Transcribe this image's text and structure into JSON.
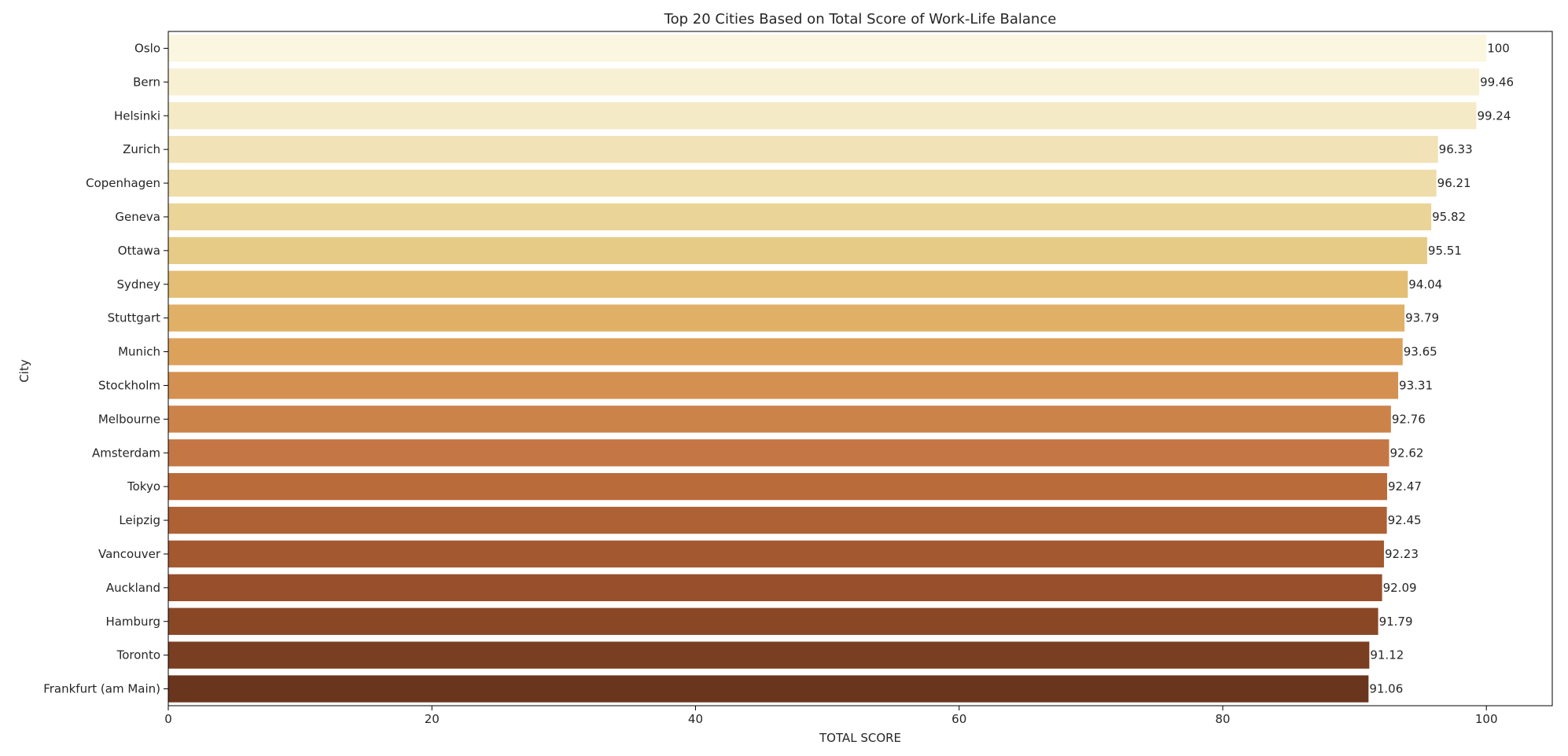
{
  "chart_data": {
    "type": "bar",
    "orientation": "horizontal",
    "title": "Top 20 Cities Based on Total Score of Work-Life Balance",
    "xlabel": "TOTAL SCORE",
    "ylabel": "City",
    "xlim": [
      0,
      105
    ],
    "xticks": [
      0,
      20,
      40,
      60,
      80,
      100
    ],
    "grid": false,
    "legend": "none",
    "palette": "YlOrBr",
    "categories": [
      "Oslo",
      "Bern",
      "Helsinki",
      "Zurich",
      "Copenhagen",
      "Geneva",
      "Ottawa",
      "Sydney",
      "Stuttgart",
      "Munich",
      "Stockholm",
      "Melbourne",
      "Amsterdam",
      "Tokyo",
      "Leipzig",
      "Vancouver",
      "Auckland",
      "Hamburg",
      "Toronto",
      "Frankfurt (am Main)"
    ],
    "values": [
      100,
      99.46,
      99.24,
      96.33,
      96.21,
      95.82,
      95.51,
      94.04,
      93.79,
      93.65,
      93.31,
      92.76,
      92.62,
      92.47,
      92.45,
      92.23,
      92.09,
      91.79,
      91.12,
      91.06
    ],
    "value_labels": [
      "100",
      "99.46",
      "99.24",
      "96.33",
      "96.21",
      "95.82",
      "95.51",
      "94.04",
      "93.79",
      "93.65",
      "93.31",
      "92.76",
      "92.62",
      "92.47",
      "92.45",
      "92.23",
      "92.09",
      "91.79",
      "91.12",
      "91.06"
    ],
    "colors": [
      "#faf6df",
      "#f7f0d3",
      "#f4eac6",
      "#f1e3b7",
      "#eedca9",
      "#ead497",
      "#e6cb87",
      "#e3be74",
      "#dfb066",
      "#dca15b",
      "#d49050",
      "#cc834a",
      "#c47644",
      "#ba6b3a",
      "#ad6135",
      "#a35830",
      "#97502b",
      "#8a4726",
      "#7a3e22",
      "#6a351d"
    ]
  }
}
